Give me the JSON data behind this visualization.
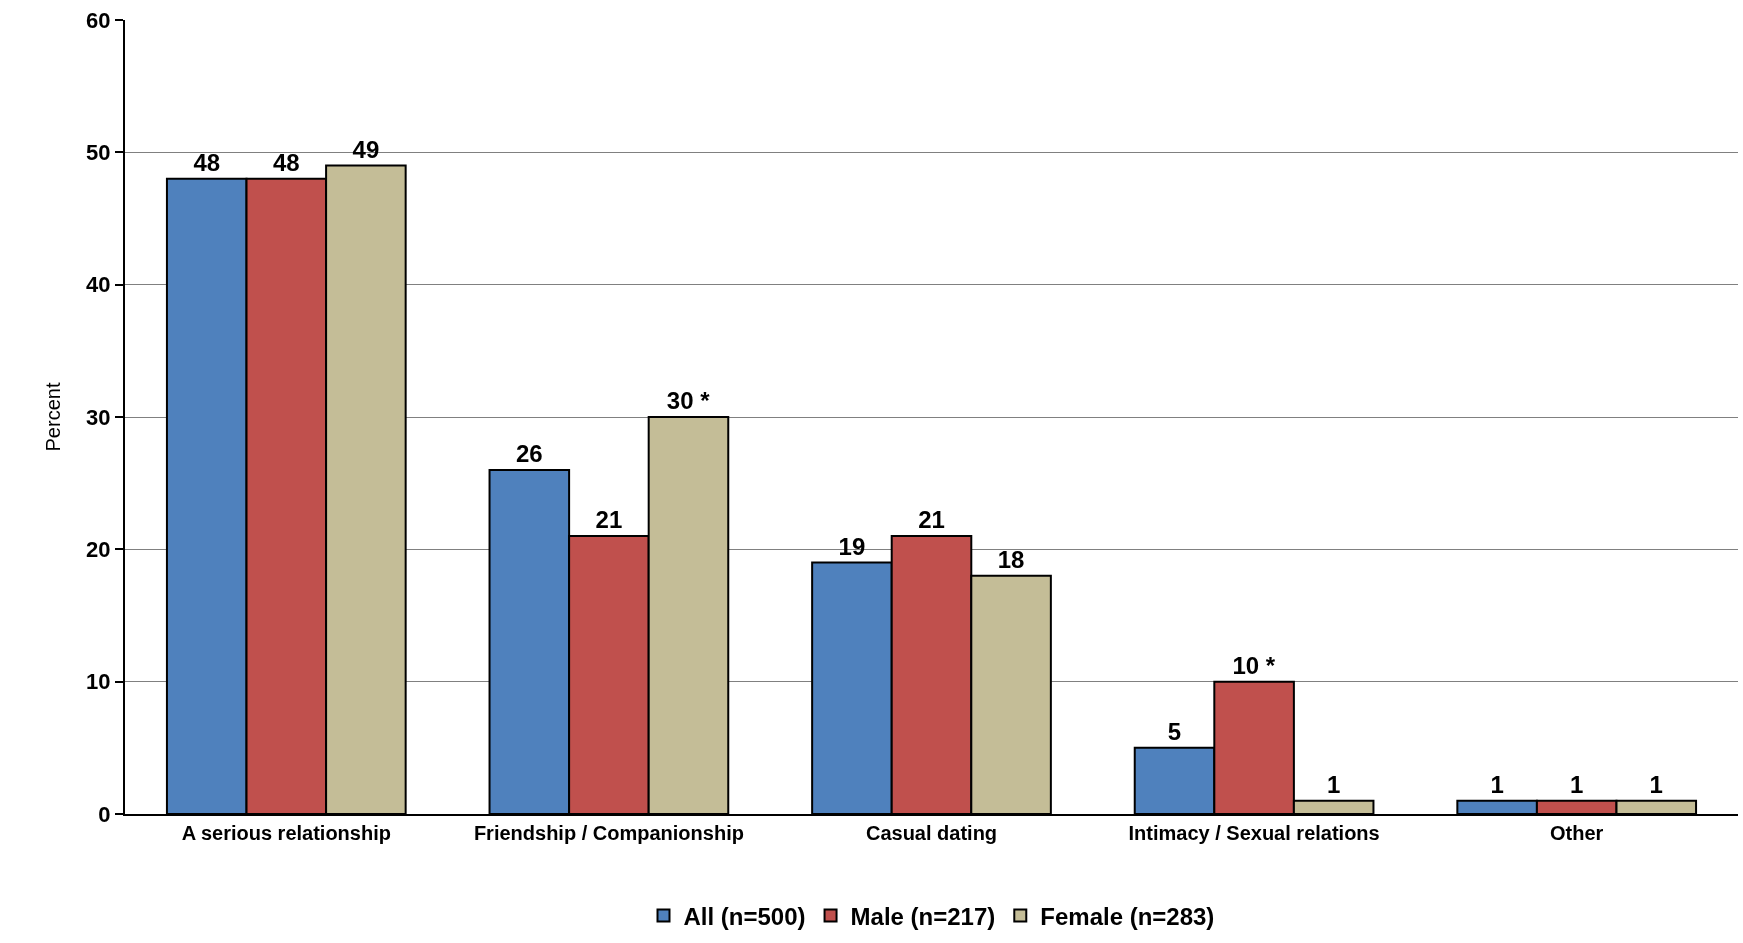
{
  "chart_data": {
    "type": "bar",
    "ylabel": "Percent",
    "categories": [
      "A serious relationship",
      "Friendship / Companionship",
      "Casual dating",
      "Intimacy / Sexual relations",
      "Other"
    ],
    "series": [
      {
        "name": "All (n=500)",
        "color": "#4f81bd",
        "values": [
          48,
          26,
          19,
          5,
          1
        ],
        "value_labels": [
          "48",
          "26",
          "19",
          "5",
          "1"
        ]
      },
      {
        "name": "Male (n=217)",
        "color": "#c0504d",
        "values": [
          48,
          21,
          21,
          10,
          1
        ],
        "value_labels": [
          "48",
          "21",
          "21",
          "10 *",
          "1"
        ]
      },
      {
        "name": "Female (n=283)",
        "color": "#c4bd97",
        "values": [
          49,
          30,
          18,
          1,
          1
        ],
        "value_labels": [
          "49",
          "30 *",
          "18",
          "1",
          "1"
        ]
      }
    ],
    "ylim": [
      0,
      60
    ],
    "yticks": [
      0,
      10,
      20,
      30,
      40,
      50,
      60
    ],
    "grid": "y",
    "legend": "bottom"
  }
}
